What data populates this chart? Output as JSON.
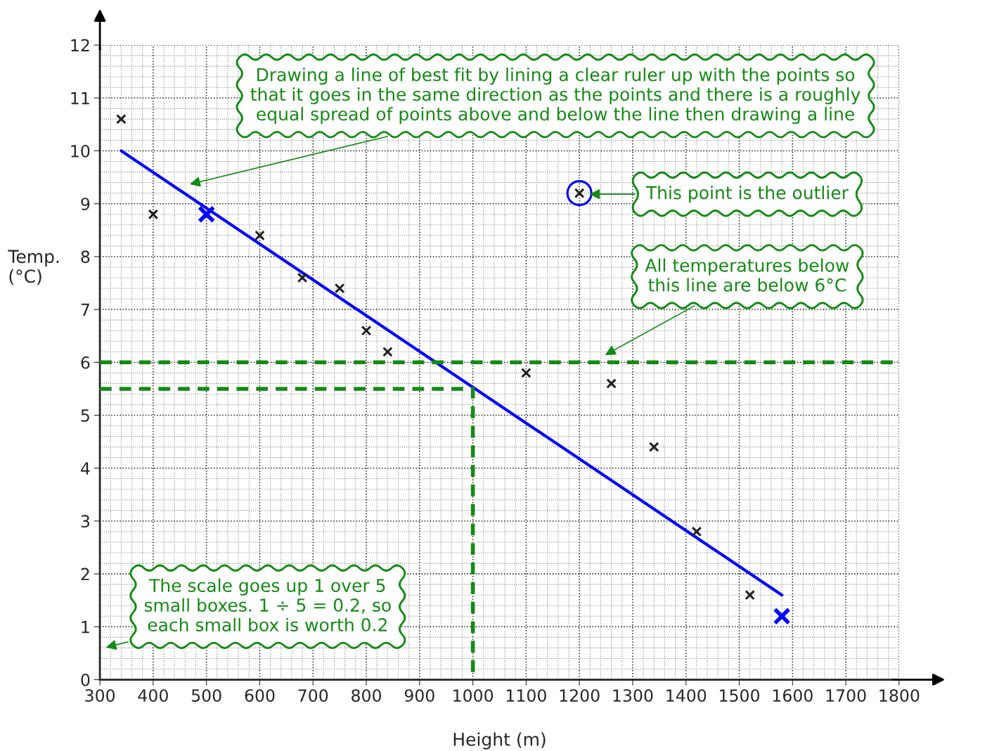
{
  "chart_data": {
    "type": "scatter",
    "xlabel": "Height (m)",
    "ylabel": "Temp.\n(°C)",
    "xlim": [
      300,
      1800
    ],
    "ylim": [
      0,
      12
    ],
    "xticks": [
      300,
      400,
      500,
      600,
      700,
      800,
      900,
      1000,
      1100,
      1200,
      1300,
      1400,
      1500,
      1600,
      1700,
      1800
    ],
    "yticks": [
      0,
      1,
      2,
      3,
      4,
      5,
      6,
      7,
      8,
      9,
      10,
      11,
      12
    ],
    "grid": true,
    "marker": "cross",
    "series": [
      {
        "color": "#222222",
        "x": [
          340,
          400,
          600,
          680,
          750,
          800,
          840,
          1100,
          1200,
          1260,
          1340,
          1420,
          1520
        ],
        "values": [
          10.6,
          8.8,
          8.4,
          7.6,
          7.4,
          6.6,
          6.2,
          5.8,
          9.2,
          5.6,
          4.4,
          2.8,
          1.6
        ]
      },
      {
        "color": "#0000ff",
        "x": [
          500,
          1580
        ],
        "values": [
          8.8,
          1.2
        ]
      },
      {
        "type": "line",
        "color": "#0000ff",
        "marker": "none",
        "line_style": "solid",
        "x": [
          340,
          1580
        ],
        "values": [
          10.0,
          1.6
        ]
      },
      {
        "color": "#0000ff",
        "marker": "circle",
        "x": [
          1200
        ],
        "values": [
          9.2
        ]
      },
      {
        "type": "line",
        "color": "#138a13",
        "marker": "none",
        "line_style": "dashed",
        "x": [
          300,
          1000,
          1000
        ],
        "values": [
          5.5,
          5.5,
          0
        ]
      }
    ],
    "ref_lines": [
      {
        "axis": "y",
        "value": 6,
        "color": "#138a13",
        "line_style": "dashed"
      }
    ],
    "annotations": [
      "Drawing a line of best fit by lining a clear ruler up with the points so\nthat it goes in the same direction as the points and there is a roughly\nequal spread of points above and below the line then drawing a line",
      "This point is the outlier",
      "All temperatures below\nthis line are below 6°C",
      "The scale goes up 1 over 5\nsmall boxes. 1 ÷ 5 = 0.2, so\neach small box is worth 0.2"
    ]
  }
}
